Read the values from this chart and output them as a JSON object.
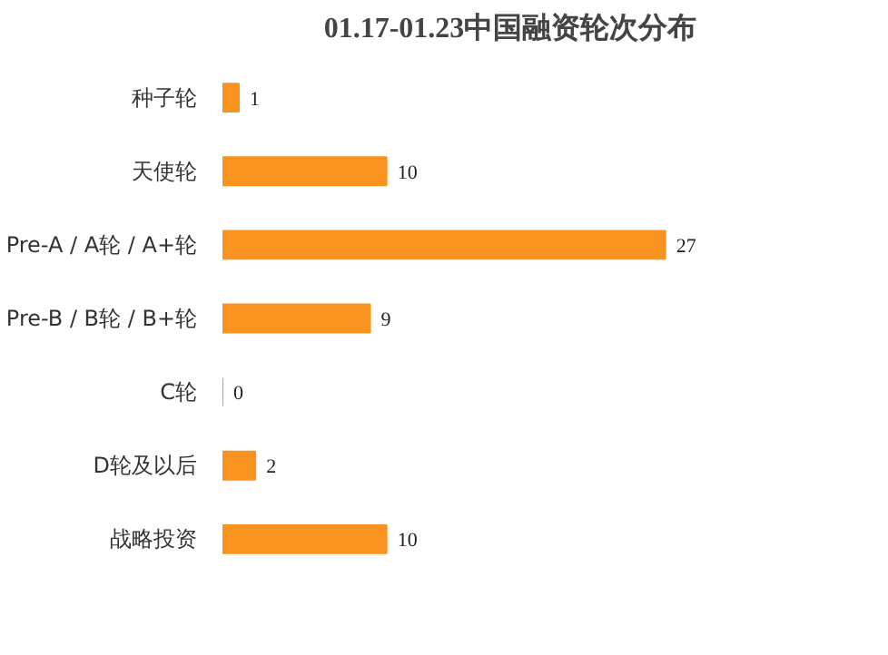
{
  "chart_data": {
    "type": "bar",
    "orientation": "horizontal",
    "title": "01.17-01.23中国融资轮次分布",
    "categories": [
      "种子轮",
      "天使轮",
      "Pre-A / A轮 / A+轮",
      "Pre-B / B轮 / B+轮",
      "C轮",
      "D轮及以后",
      "战略投资"
    ],
    "values": [
      1,
      10,
      27,
      9,
      0,
      2,
      10
    ],
    "color": "#f7931e",
    "data_labels": true,
    "grid": false
  }
}
